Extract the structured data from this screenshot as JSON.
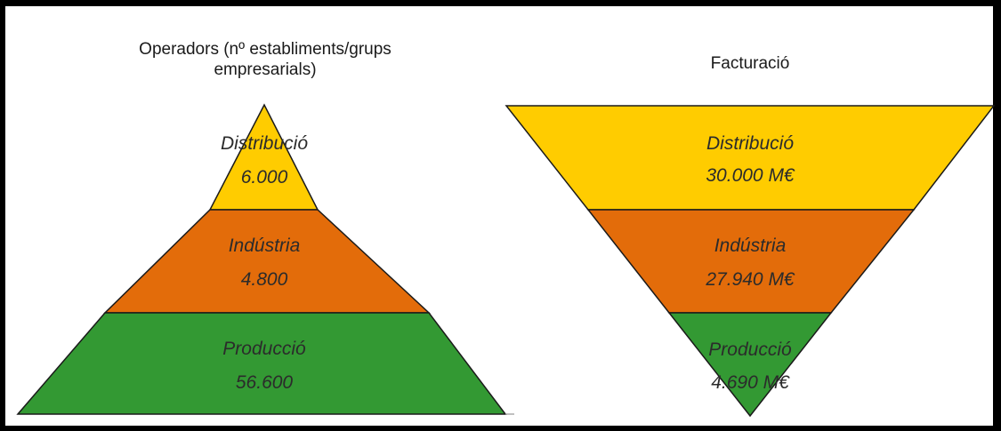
{
  "pyramid": {
    "title": "Operadors (nº establiments/grups empresarials)",
    "title_line1": "Operadors (nº establiments/grups",
    "title_line2": "empresarials)",
    "levels": [
      {
        "label": "Distribució",
        "value": "6.000",
        "color": "#FFCC00"
      },
      {
        "label": "Indústria",
        "value": "4.800",
        "color": "#E36C0A"
      },
      {
        "label": "Producció",
        "value": "56.600",
        "color": "#339933"
      }
    ]
  },
  "funnel": {
    "title": "Facturació",
    "levels": [
      {
        "label": "Distribució",
        "value": "30.000 M€",
        "color": "#FFCC00"
      },
      {
        "label": "Indústria",
        "value": "27.940 M€",
        "color": "#E36C0A"
      },
      {
        "label": "Producció",
        "value": "4.690 M€",
        "color": "#339933"
      }
    ]
  },
  "outline_color": "#1a1a1a"
}
